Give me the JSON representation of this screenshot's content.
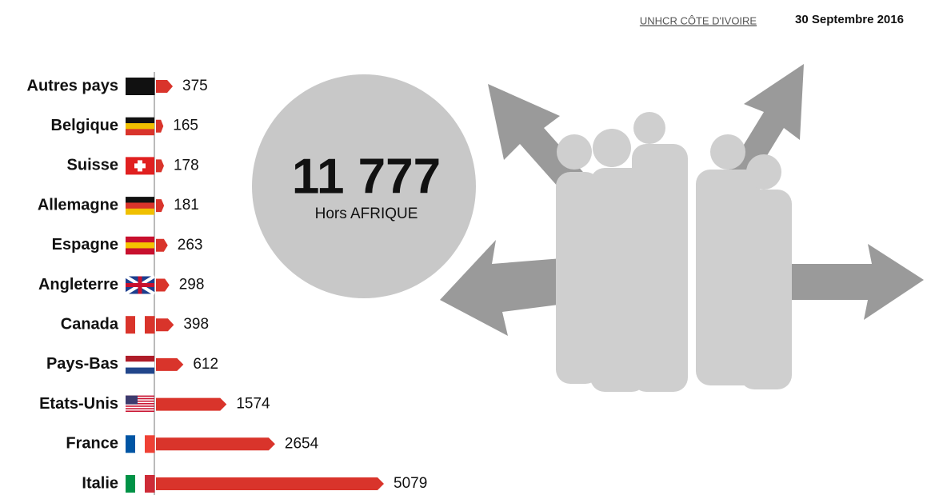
{
  "chart_data": {
    "type": "hbar",
    "header": "UNHCR CÔTE D'IVOIRE",
    "date": "30 Septembre 2016",
    "total": "11 777",
    "total_label": "Hors AFRIQUE",
    "categories": [
      "Autres pays",
      "Belgique",
      "Suisse",
      "Allemagne",
      "Espagne",
      "Angleterre",
      "Canada",
      "Pays-Bas",
      "Etats-Unis",
      "France",
      "Italie"
    ],
    "values": [
      375,
      165,
      178,
      181,
      263,
      298,
      398,
      612,
      1574,
      2654,
      5079
    ],
    "color": "#d9342b"
  }
}
